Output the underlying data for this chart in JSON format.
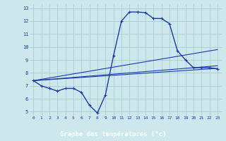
{
  "background_color": "#cce8ec",
  "grid_color": "#a8cdd4",
  "line_color": "#1a3aab",
  "xlabel": "Graphe des températures (°c)",
  "xlim": [
    -0.5,
    23.5
  ],
  "ylim": [
    4.7,
    13.3
  ],
  "yticks": [
    5,
    6,
    7,
    8,
    9,
    10,
    11,
    12,
    13
  ],
  "xticks": [
    0,
    1,
    2,
    3,
    4,
    5,
    6,
    7,
    8,
    9,
    10,
    11,
    12,
    13,
    14,
    15,
    16,
    17,
    18,
    19,
    20,
    21,
    22,
    23
  ],
  "series1_x": [
    0,
    1,
    2,
    3,
    4,
    5,
    6,
    7,
    8,
    9,
    10,
    11,
    12,
    13,
    14,
    15,
    16,
    17,
    18,
    19,
    20,
    21,
    22,
    23
  ],
  "series1_y": [
    7.4,
    7.0,
    6.8,
    6.6,
    6.8,
    6.8,
    6.5,
    5.5,
    4.9,
    6.3,
    9.3,
    12.0,
    12.7,
    12.7,
    12.65,
    12.2,
    12.2,
    11.8,
    9.7,
    9.0,
    8.4,
    8.4,
    8.4,
    8.3
  ],
  "series2_x": [
    0,
    23
  ],
  "series2_y": [
    7.4,
    9.8
  ],
  "series3_x": [
    0,
    23
  ],
  "series3_y": [
    7.4,
    8.35
  ],
  "series4_x": [
    0,
    23
  ],
  "series4_y": [
    7.4,
    8.55
  ],
  "xlabel_bg": "#1a3aab",
  "xlabel_color": "#ffffff"
}
